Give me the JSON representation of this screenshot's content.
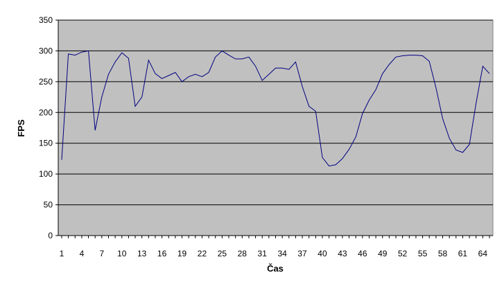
{
  "chart_data": {
    "type": "line",
    "xlabel": "Čas",
    "ylabel": "FPS",
    "ylim": [
      0,
      350
    ],
    "y_ticks": [
      0,
      50,
      100,
      150,
      200,
      250,
      300,
      350
    ],
    "x_tick_labels": [
      1,
      4,
      7,
      10,
      13,
      16,
      19,
      22,
      25,
      28,
      31,
      34,
      37,
      40,
      43,
      46,
      49,
      52,
      55,
      58,
      61,
      64
    ],
    "grid": "horizontal",
    "legend": "none",
    "series": [
      {
        "color": "#000080",
        "x": [
          1,
          2,
          3,
          4,
          5,
          6,
          7,
          8,
          9,
          10,
          11,
          12,
          13,
          14,
          15,
          16,
          17,
          18,
          19,
          20,
          21,
          22,
          23,
          24,
          25,
          26,
          27,
          28,
          29,
          30,
          31,
          32,
          33,
          34,
          35,
          36,
          37,
          38,
          39,
          40,
          41,
          42,
          43,
          44,
          45,
          46,
          47,
          48,
          49,
          50,
          51,
          52,
          53,
          54,
          55,
          56,
          57,
          58,
          59,
          60,
          61,
          62,
          63,
          64,
          65
        ],
        "values": [
          123,
          295,
          293,
          298,
          300,
          171,
          225,
          262,
          282,
          297,
          288,
          210,
          225,
          285,
          263,
          255,
          260,
          265,
          250,
          258,
          262,
          258,
          265,
          290,
          300,
          293,
          287,
          287,
          290,
          275,
          252,
          262,
          272,
          272,
          270,
          282,
          242,
          210,
          202,
          127,
          113,
          115,
          125,
          140,
          160,
          198,
          220,
          237,
          263,
          278,
          290,
          292,
          293,
          293,
          292,
          283,
          240,
          190,
          158,
          139,
          135,
          148,
          215,
          275,
          263
        ]
      }
    ]
  },
  "colors": {
    "plot_background": "#c0c0c0",
    "gridline": "#000000",
    "line": "#000080"
  }
}
